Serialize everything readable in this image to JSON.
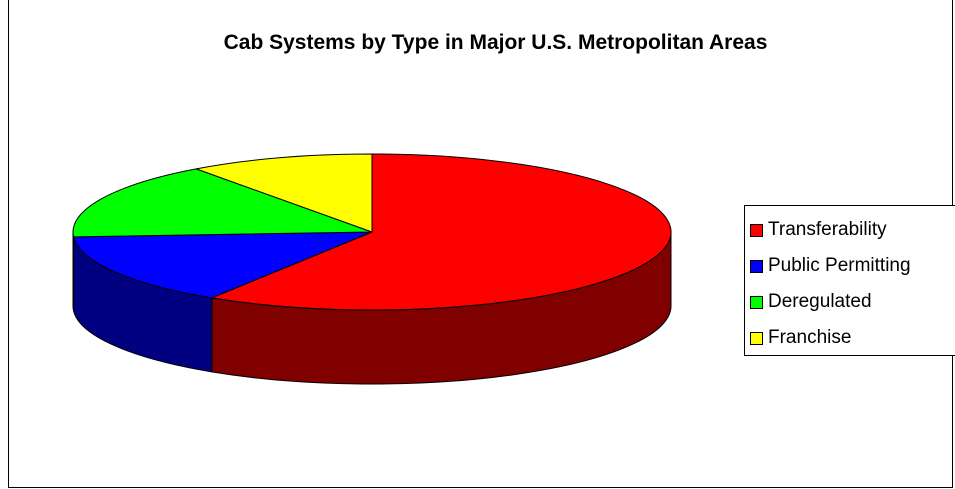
{
  "chart_data": {
    "type": "pie",
    "title": "Cab Systems by Type in Major U.S. Metropolitan Areas",
    "categories": [
      "Transferability",
      "Public Permitting",
      "Deregulated",
      "Franchise"
    ],
    "values": [
      59,
      15,
      16,
      10
    ],
    "colors": [
      "#ff0000",
      "#0000ff",
      "#00ff00",
      "#ffff00"
    ],
    "side_colors": [
      "#800000",
      "#000080",
      "#008000",
      "#808000"
    ],
    "style": "3d",
    "legend_position": "right"
  }
}
